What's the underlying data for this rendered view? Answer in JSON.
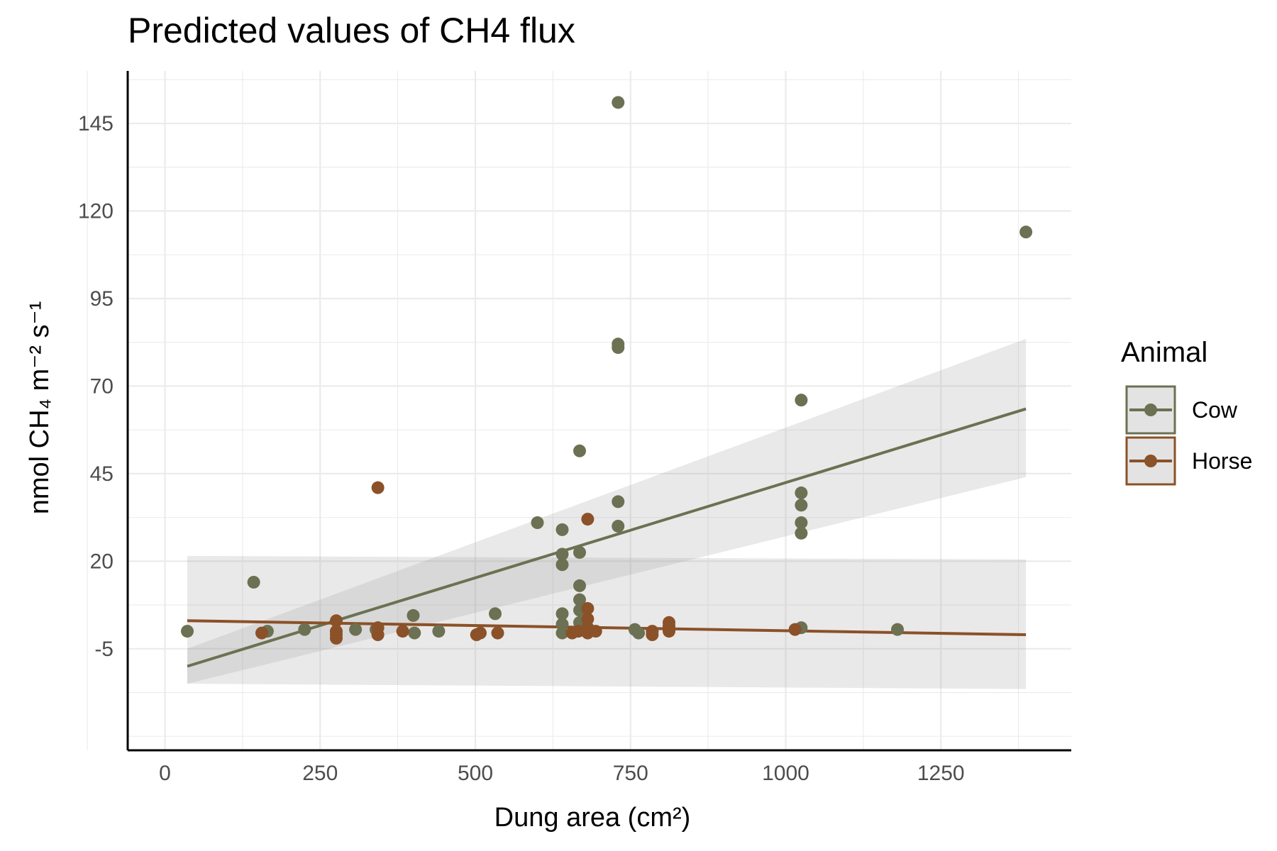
{
  "chart_data": {
    "type": "scatter",
    "title": "Predicted values of CH4 flux",
    "xlabel": "Dung area (cm²)",
    "ylabel": "nmol CH₄ m⁻² s⁻¹",
    "xlim": [
      -60,
      1460
    ],
    "ylim": [
      -34,
      160
    ],
    "x_ticks": [
      0,
      250,
      500,
      750,
      1000,
      1250
    ],
    "y_ticks": [
      -5,
      20,
      45,
      70,
      95,
      120,
      145
    ],
    "grid": true,
    "legend": {
      "title": "Animal",
      "placement": "right"
    },
    "series": [
      {
        "name": "Cow",
        "color": "#6b7152",
        "points": [
          [
            36,
            0
          ],
          [
            143,
            14
          ],
          [
            165,
            0
          ],
          [
            225,
            0.5
          ],
          [
            307,
            0.5
          ],
          [
            340,
            0.5
          ],
          [
            400,
            4.5
          ],
          [
            402,
            -0.5
          ],
          [
            441,
            0
          ],
          [
            532,
            5
          ],
          [
            600,
            31
          ],
          [
            640,
            29
          ],
          [
            640,
            22
          ],
          [
            640,
            19
          ],
          [
            640,
            5
          ],
          [
            640,
            2
          ],
          [
            640,
            -0.5
          ],
          [
            668,
            51.5
          ],
          [
            668,
            22.5
          ],
          [
            668,
            13
          ],
          [
            668,
            9
          ],
          [
            668,
            6
          ],
          [
            668,
            2.5
          ],
          [
            730,
            151
          ],
          [
            730,
            82
          ],
          [
            730,
            81
          ],
          [
            730,
            37
          ],
          [
            730,
            30
          ],
          [
            757,
            0.5
          ],
          [
            763,
            -0.5
          ],
          [
            1025,
            66
          ],
          [
            1025,
            39.5
          ],
          [
            1025,
            36
          ],
          [
            1025,
            31
          ],
          [
            1025,
            28
          ],
          [
            1025,
            1
          ],
          [
            1180,
            0.5
          ],
          [
            1387,
            114
          ]
        ],
        "fit": {
          "x": [
            36,
            1387
          ],
          "y": [
            -10,
            63.5
          ],
          "ci_low": [
            -15,
            44
          ],
          "ci_high": [
            -5,
            83.5
          ]
        }
      },
      {
        "name": "Horse",
        "color": "#8b5128",
        "points": [
          [
            156,
            -0.5
          ],
          [
            276,
            3
          ],
          [
            276,
            0
          ],
          [
            276,
            -1
          ],
          [
            276,
            -2
          ],
          [
            343,
            41
          ],
          [
            343,
            1
          ],
          [
            343,
            -1
          ],
          [
            383,
            0
          ],
          [
            502,
            -1
          ],
          [
            508,
            -0.5
          ],
          [
            536,
            -0.5
          ],
          [
            656,
            -0.5
          ],
          [
            666,
            0
          ],
          [
            681,
            32
          ],
          [
            681,
            6.5
          ],
          [
            681,
            3.5
          ],
          [
            681,
            1
          ],
          [
            681,
            -0.5
          ],
          [
            694,
            0
          ],
          [
            785,
            0
          ],
          [
            785,
            -1
          ],
          [
            812,
            2.5
          ],
          [
            812,
            1.5
          ],
          [
            812,
            0
          ],
          [
            1015,
            0.5
          ]
        ],
        "fit": {
          "x": [
            36,
            1387
          ],
          "y": [
            3,
            -1
          ],
          "ci_low": [
            -15,
            -16.5
          ],
          "ci_high": [
            21.5,
            20.5
          ]
        }
      }
    ]
  }
}
